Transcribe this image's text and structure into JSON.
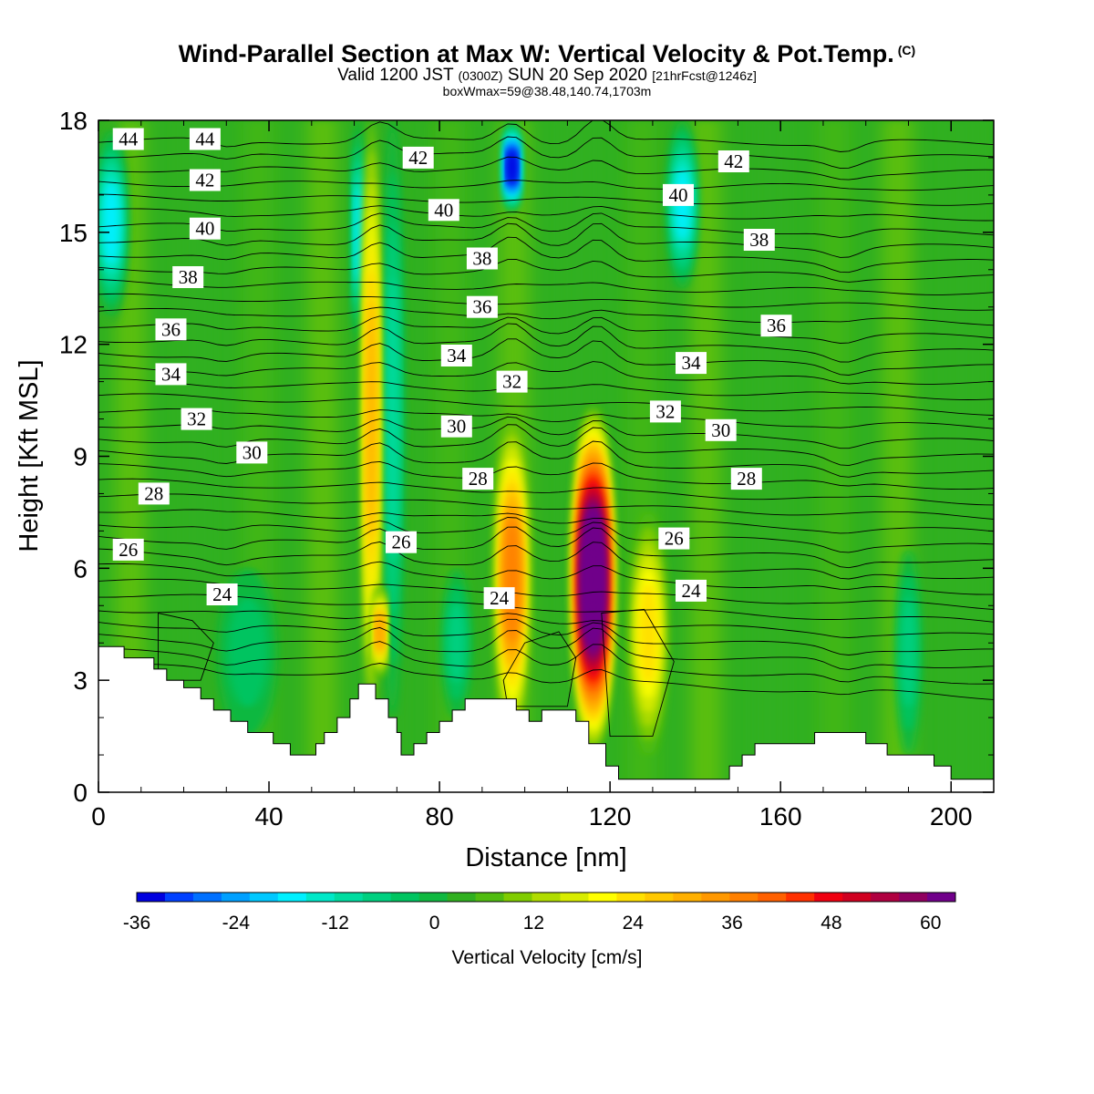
{
  "title": {
    "main": "Wind-Parallel Section at Max W: Vertical Velocity & Pot.Temp.",
    "copyright": "(C)",
    "valid_prefix": "Valid 1200 JST",
    "valid_utc": "(0300Z)",
    "valid_date": "SUN 20 Sep 2020",
    "forecast": "[21hrFcst@1246z]",
    "box_info": "boxWmax=59@38.48,140.74,1703m"
  },
  "chart_data": {
    "type": "heatmap",
    "xlabel": "Distance [nm]",
    "ylabel": "Height [Kft MSL]",
    "xlim": [
      0,
      210
    ],
    "ylim": [
      0,
      18
    ],
    "x_ticks": [
      "0",
      "40",
      "80",
      "120",
      "160",
      "200"
    ],
    "y_ticks": [
      "0",
      "3",
      "6",
      "9",
      "12",
      "15",
      "18"
    ],
    "colorbar": {
      "label": "Vertical Velocity [cm/s]",
      "tick_labels": [
        "-36",
        "-24",
        "-12",
        "0",
        "12",
        "24",
        "36",
        "48",
        "60"
      ],
      "levels": [
        -36,
        -33,
        -30,
        -27,
        -24,
        -21,
        -18,
        -15,
        -12,
        -9,
        -6,
        -3,
        0,
        3,
        6,
        9,
        12,
        15,
        18,
        21,
        24,
        27,
        30,
        33,
        36,
        39,
        42,
        45,
        48,
        51,
        54,
        57,
        60,
        63
      ],
      "colors": [
        "#0000e0",
        "#0040ff",
        "#0070ff",
        "#00a0ff",
        "#00c8ff",
        "#00f0ff",
        "#00e8c8",
        "#00dca0",
        "#00d080",
        "#00c460",
        "#10b840",
        "#30b020",
        "#50bc10",
        "#80cc00",
        "#b0dc00",
        "#d8ec00",
        "#ffff00",
        "#ffe000",
        "#ffc800",
        "#ffb000",
        "#ff9800",
        "#ff8000",
        "#ff6000",
        "#ff3000",
        "#f00010",
        "#d00020",
        "#b00040",
        "#900060",
        "#70008a"
      ]
    },
    "max_w": {
      "value_cm_s": 59,
      "x_nm": 116,
      "z_kft": 5.2
    },
    "contour_variable": "Potential temperature",
    "isentrope_labels": [
      {
        "text": "44",
        "x": 7,
        "z": 17.5
      },
      {
        "text": "44",
        "x": 25,
        "z": 17.5
      },
      {
        "text": "42",
        "x": 25,
        "z": 16.4
      },
      {
        "text": "40",
        "x": 25,
        "z": 15.1
      },
      {
        "text": "38",
        "x": 21,
        "z": 13.8
      },
      {
        "text": "36",
        "x": 17,
        "z": 12.4
      },
      {
        "text": "34",
        "x": 17,
        "z": 11.2
      },
      {
        "text": "32",
        "x": 23,
        "z": 10.0
      },
      {
        "text": "30",
        "x": 36,
        "z": 9.1
      },
      {
        "text": "28",
        "x": 13,
        "z": 8.0
      },
      {
        "text": "26",
        "x": 7,
        "z": 6.5
      },
      {
        "text": "24",
        "x": 29,
        "z": 5.3
      },
      {
        "text": "42",
        "x": 75,
        "z": 17.0
      },
      {
        "text": "40",
        "x": 81,
        "z": 15.6
      },
      {
        "text": "38",
        "x": 90,
        "z": 14.3
      },
      {
        "text": "36",
        "x": 90,
        "z": 13.0
      },
      {
        "text": "34",
        "x": 84,
        "z": 11.7
      },
      {
        "text": "32",
        "x": 97,
        "z": 11.0
      },
      {
        "text": "30",
        "x": 84,
        "z": 9.8
      },
      {
        "text": "28",
        "x": 89,
        "z": 8.4
      },
      {
        "text": "26",
        "x": 71,
        "z": 6.7
      },
      {
        "text": "24",
        "x": 94,
        "z": 5.2
      },
      {
        "text": "42",
        "x": 149,
        "z": 16.9
      },
      {
        "text": "40",
        "x": 136,
        "z": 16.0
      },
      {
        "text": "38",
        "x": 155,
        "z": 14.8
      },
      {
        "text": "36",
        "x": 159,
        "z": 12.5
      },
      {
        "text": "34",
        "x": 139,
        "z": 11.5
      },
      {
        "text": "32",
        "x": 133,
        "z": 10.2
      },
      {
        "text": "30",
        "x": 146,
        "z": 9.7
      },
      {
        "text": "28",
        "x": 152,
        "z": 8.4
      },
      {
        "text": "26",
        "x": 135,
        "z": 6.8
      },
      {
        "text": "24",
        "x": 139,
        "z": 5.4
      }
    ],
    "terrain_kft": [
      [
        0,
        3.9
      ],
      [
        6,
        3.9
      ],
      [
        6,
        3.6
      ],
      [
        13,
        3.6
      ],
      [
        13,
        3.3
      ],
      [
        16,
        3.3
      ],
      [
        16,
        3.0
      ],
      [
        20,
        3.0
      ],
      [
        20,
        2.8
      ],
      [
        24,
        2.8
      ],
      [
        24,
        2.5
      ],
      [
        27,
        2.5
      ],
      [
        27,
        2.2
      ],
      [
        31,
        2.2
      ],
      [
        31,
        1.9
      ],
      [
        35,
        1.9
      ],
      [
        35,
        1.6
      ],
      [
        41,
        1.6
      ],
      [
        41,
        1.3
      ],
      [
        45,
        1.3
      ],
      [
        45,
        1.0
      ],
      [
        51,
        1.0
      ],
      [
        51,
        1.3
      ],
      [
        53,
        1.3
      ],
      [
        53,
        1.6
      ],
      [
        56,
        1.6
      ],
      [
        56,
        2.0
      ],
      [
        59,
        2.0
      ],
      [
        59,
        2.5
      ],
      [
        61,
        2.5
      ],
      [
        61,
        2.9
      ],
      [
        65,
        2.9
      ],
      [
        65,
        2.5
      ],
      [
        68,
        2.5
      ],
      [
        68,
        2.0
      ],
      [
        70,
        2.0
      ],
      [
        70,
        1.6
      ],
      [
        71,
        1.6
      ],
      [
        71,
        1.0
      ],
      [
        74,
        1.0
      ],
      [
        74,
        1.3
      ],
      [
        77,
        1.3
      ],
      [
        77,
        1.6
      ],
      [
        80,
        1.6
      ],
      [
        80,
        1.9
      ],
      [
        83,
        1.9
      ],
      [
        83,
        2.2
      ],
      [
        86,
        2.2
      ],
      [
        86,
        2.5
      ],
      [
        98,
        2.5
      ],
      [
        98,
        2.2
      ],
      [
        101,
        2.2
      ],
      [
        101,
        1.9
      ],
      [
        104,
        1.9
      ],
      [
        104,
        2.2
      ],
      [
        112,
        2.2
      ],
      [
        112,
        1.9
      ],
      [
        115,
        1.9
      ],
      [
        115,
        1.3
      ],
      [
        119,
        1.3
      ],
      [
        119,
        0.7
      ],
      [
        122,
        0.7
      ],
      [
        122,
        0.35
      ],
      [
        148,
        0.35
      ],
      [
        148,
        0.7
      ],
      [
        151,
        0.7
      ],
      [
        151,
        1.0
      ],
      [
        154,
        1.0
      ],
      [
        154,
        1.3
      ],
      [
        168,
        1.3
      ],
      [
        168,
        1.6
      ],
      [
        180,
        1.6
      ],
      [
        180,
        1.3
      ],
      [
        185,
        1.3
      ],
      [
        185,
        1.0
      ],
      [
        196,
        1.0
      ],
      [
        196,
        0.7
      ],
      [
        200,
        0.7
      ],
      [
        200,
        0.35
      ],
      [
        210,
        0.35
      ]
    ],
    "updraft_columns": [
      {
        "x": 97,
        "w": 8,
        "z0": 1.2,
        "z1": 10.2,
        "peak_cm_s": 30
      },
      {
        "x": 116,
        "w": 10,
        "z0": 1.0,
        "z1": 10.4,
        "peak_cm_s": 59
      },
      {
        "x": 64,
        "w": 4,
        "z0": 2.0,
        "z1": 18.0,
        "peak_cm_s": 22
      },
      {
        "x": 129,
        "w": 9,
        "z0": 1.0,
        "z1": 7.5,
        "peak_cm_s": 18
      },
      {
        "x": 66,
        "w": 3,
        "z0": 3.0,
        "z1": 5.6,
        "peak_cm_s": 26
      }
    ],
    "downdraft_columns": [
      {
        "x": 3,
        "w": 8,
        "z0": 12.5,
        "z1": 18.0,
        "peak_cm_s": -20
      },
      {
        "x": 97,
        "w": 4,
        "z0": 15.5,
        "z1": 18.0,
        "peak_cm_s": -36
      },
      {
        "x": 69,
        "w": 5,
        "z0": 2.0,
        "z1": 18.0,
        "peak_cm_s": -12
      },
      {
        "x": 61,
        "w": 3,
        "z0": 12.0,
        "z1": 18.0,
        "peak_cm_s": -18
      },
      {
        "x": 137,
        "w": 7,
        "z0": 13.5,
        "z1": 18.0,
        "peak_cm_s": -18
      },
      {
        "x": 190,
        "w": 6,
        "z0": 1.0,
        "z1": 6.5,
        "peak_cm_s": -10
      },
      {
        "x": 35,
        "w": 14,
        "z0": 1.5,
        "z1": 6.0,
        "peak_cm_s": -7
      },
      {
        "x": 84,
        "w": 7,
        "z0": 2.0,
        "z1": 6.0,
        "peak_cm_s": -9
      }
    ]
  }
}
